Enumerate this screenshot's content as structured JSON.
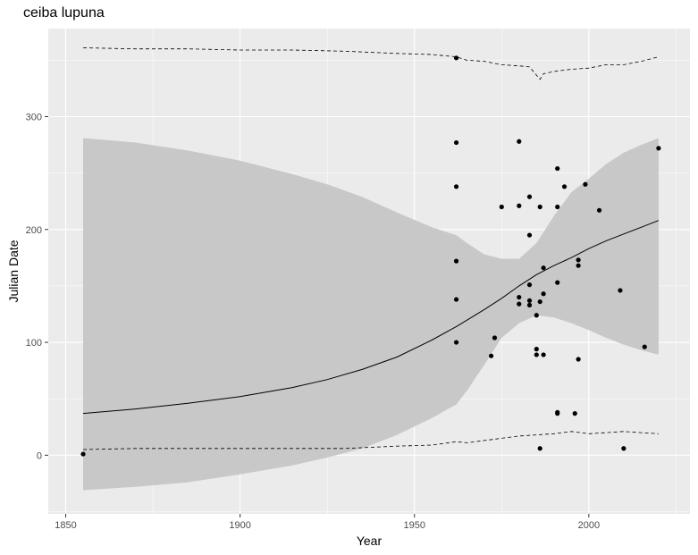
{
  "chart_data": {
    "type": "scatter",
    "title": "ceiba lupuna",
    "xlabel": "Year",
    "ylabel": "Julian Date",
    "xlim": [
      1845,
      2029
    ],
    "ylim": [
      -52,
      378
    ],
    "x_ticks": [
      1850,
      1900,
      1950,
      2000
    ],
    "y_ticks": [
      0,
      100,
      200,
      300
    ],
    "grid": true,
    "colors": {
      "panel": "#ebebeb",
      "grid_major": "#ffffff",
      "ribbon": "#c8c8c8",
      "line": "#000000",
      "points": "#000000",
      "tick_text": "#4d4d4d"
    },
    "points": [
      [
        1855,
        1
      ],
      [
        1962,
        352
      ],
      [
        1962,
        277
      ],
      [
        1962,
        238
      ],
      [
        1962,
        172
      ],
      [
        1962,
        138
      ],
      [
        1962,
        100
      ],
      [
        1972,
        88
      ],
      [
        1973,
        104
      ],
      [
        1975,
        220
      ],
      [
        1980,
        278
      ],
      [
        1980,
        221
      ],
      [
        1980,
        140
      ],
      [
        1980,
        134
      ],
      [
        1983,
        229
      ],
      [
        1983,
        195
      ],
      [
        1983,
        151
      ],
      [
        1983,
        137
      ],
      [
        1983,
        133
      ],
      [
        1985,
        124
      ],
      [
        1985,
        94
      ],
      [
        1985,
        89
      ],
      [
        1986,
        220
      ],
      [
        1986,
        136
      ],
      [
        1986,
        6
      ],
      [
        1987,
        166
      ],
      [
        1987,
        143
      ],
      [
        1987,
        89
      ],
      [
        1991,
        254
      ],
      [
        1991,
        220
      ],
      [
        1991,
        153
      ],
      [
        1991,
        38
      ],
      [
        1991,
        37
      ],
      [
        1993,
        238
      ],
      [
        1996,
        37
      ],
      [
        1997,
        173
      ],
      [
        1997,
        168
      ],
      [
        1997,
        85
      ],
      [
        1999,
        240
      ],
      [
        2003,
        217
      ],
      [
        2009,
        146
      ],
      [
        2010,
        6
      ],
      [
        2016,
        96
      ],
      [
        2020,
        272
      ]
    ],
    "fit_line": {
      "x": [
        1855,
        1870,
        1885,
        1900,
        1915,
        1925,
        1935,
        1945,
        1955,
        1962,
        1970,
        1975,
        1980,
        1985,
        1990,
        1995,
        2000,
        2005,
        2010,
        2015,
        2020
      ],
      "y": [
        37,
        41,
        46,
        52,
        60,
        67,
        76,
        87,
        102,
        114,
        129,
        139,
        150,
        160,
        168,
        175,
        183,
        190,
        196,
        202,
        208
      ]
    },
    "ribbon": {
      "x": [
        1855,
        1870,
        1885,
        1900,
        1915,
        1925,
        1935,
        1945,
        1955,
        1962,
        1965,
        1970,
        1975,
        1980,
        1985,
        1990,
        1995,
        2000,
        2005,
        2010,
        2015,
        2020
      ],
      "upper": [
        281,
        277,
        270,
        261,
        249,
        240,
        229,
        215,
        202,
        195,
        188,
        178,
        174,
        174,
        188,
        212,
        233,
        245,
        258,
        268,
        275,
        281
      ],
      "lower": [
        -31,
        -28,
        -24,
        -17,
        -9,
        -2,
        6,
        18,
        33,
        45,
        57,
        80,
        104,
        117,
        124,
        122,
        117,
        111,
        104,
        98,
        93,
        89
      ]
    },
    "dashed_upper": {
      "x": [
        1855,
        1870,
        1885,
        1900,
        1915,
        1930,
        1945,
        1955,
        1962,
        1965,
        1970,
        1975,
        1980,
        1983,
        1986,
        1987,
        1990,
        1995,
        2000,
        2005,
        2010,
        2015,
        2020
      ],
      "y": [
        361,
        360,
        360,
        359,
        359,
        358,
        356,
        355,
        353,
        350,
        349,
        346,
        345,
        344,
        333,
        338,
        340,
        342,
        343,
        346,
        346,
        349,
        353
      ]
    },
    "dashed_lower": {
      "x": [
        1855,
        1870,
        1885,
        1900,
        1915,
        1930,
        1945,
        1955,
        1962,
        1965,
        1970,
        1975,
        1980,
        1985,
        1990,
        1995,
        2000,
        2005,
        2010,
        2015,
        2020
      ],
      "y": [
        5,
        6,
        6,
        6,
        6,
        6,
        8,
        9,
        12,
        11,
        13,
        15,
        17,
        18,
        19,
        21,
        19,
        20,
        21,
        20,
        19
      ]
    }
  }
}
